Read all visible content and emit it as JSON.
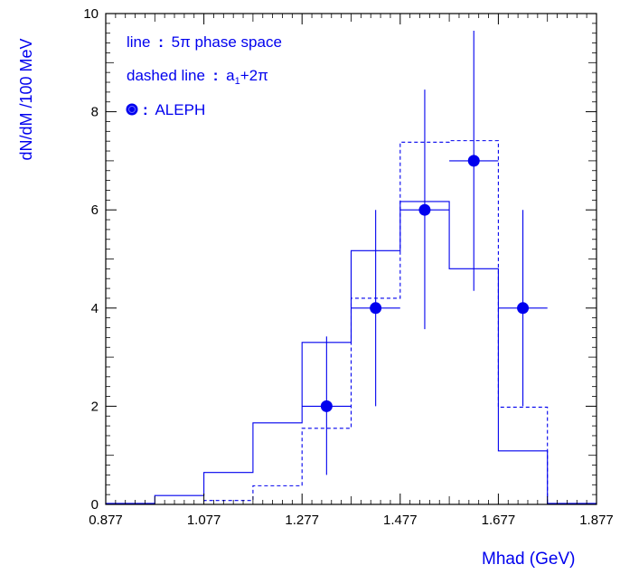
{
  "chart_data": {
    "type": "histogram",
    "xlabel": "Mhad (GeV)",
    "ylabel": "dN/dM /100 MeV",
    "xlim": [
      0.877,
      1.877
    ],
    "ylim": [
      0,
      10
    ],
    "x_ticks": [
      "0.877",
      "1.077",
      "1.277",
      "1.477",
      "1.677",
      "1.877"
    ],
    "y_ticks": [
      "0",
      "2",
      "4",
      "6",
      "8",
      "10"
    ],
    "bin_edges": [
      0.877,
      0.977,
      1.077,
      1.177,
      1.277,
      1.377,
      1.477,
      1.577,
      1.677,
      1.777,
      1.877
    ],
    "legend": {
      "line_label": "line",
      "line_desc": "5π phase space",
      "dashed_label": "dashed line",
      "dashed_desc_main": "a",
      "dashed_desc_sub": "1",
      "dashed_desc_rest": "+2π",
      "marker_label": "ALEPH",
      "separator": ":"
    },
    "series": [
      {
        "name": "5π phase space",
        "style": "solid",
        "values": [
          0.02,
          0.18,
          0.65,
          1.66,
          3.3,
          5.17,
          6.17,
          4.8,
          1.09,
          0.02
        ]
      },
      {
        "name": "a1+2π",
        "style": "dashed",
        "values": [
          0.0,
          0.0,
          0.08,
          0.38,
          1.55,
          4.2,
          7.38,
          7.41,
          1.98,
          0.0
        ]
      }
    ],
    "points": [
      {
        "x": 1.327,
        "y": 2.0,
        "yerr_low": 0.6,
        "yerr_high": 3.42,
        "xerr": 0.05
      },
      {
        "x": 1.427,
        "y": 4.0,
        "yerr_low": 2.0,
        "yerr_high": 6.0,
        "xerr": 0.05
      },
      {
        "x": 1.527,
        "y": 6.0,
        "yerr_low": 3.57,
        "yerr_high": 8.45,
        "xerr": 0.05
      },
      {
        "x": 1.627,
        "y": 7.0,
        "yerr_low": 4.35,
        "yerr_high": 9.65,
        "xerr": 0.05
      },
      {
        "x": 1.727,
        "y": 4.0,
        "yerr_low": 2.0,
        "yerr_high": 6.0,
        "xerr": 0.05
      }
    ],
    "colors": {
      "axis": "#000000",
      "data": "#0000ee",
      "text": "#0000ee"
    }
  }
}
